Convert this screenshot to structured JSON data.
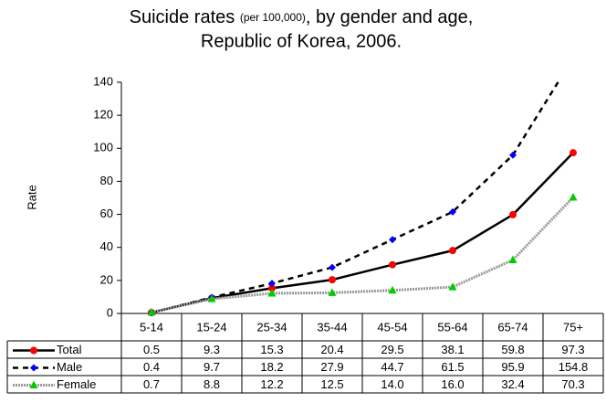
{
  "chart_data": {
    "type": "line",
    "title": {
      "main": "Suicide rates",
      "note": "(per 100,000)",
      "rest": ", by gender and age,",
      "line2": "Republic of Korea, 2006."
    },
    "y_label": "Rate",
    "categories": [
      "5-14",
      "15-24",
      "25-34",
      "35-44",
      "45-54",
      "55-64",
      "65-74",
      "75+"
    ],
    "ylim": [
      0,
      140
    ],
    "yticks": [
      0,
      20,
      40,
      60,
      80,
      100,
      120,
      140
    ],
    "series": [
      {
        "name": "Total",
        "color": "#000000",
        "marker": "circle",
        "marker_color": "#ff0000",
        "dash": "solid",
        "values": [
          0.5,
          9.3,
          15.3,
          20.4,
          29.5,
          38.1,
          59.8,
          97.3
        ],
        "value_labels": [
          "0.5",
          "9.3",
          "15.3",
          "20.4",
          "29.5",
          "38.1",
          "59.8",
          "97.3"
        ]
      },
      {
        "name": "Male",
        "color": "#000000",
        "marker": "diamond",
        "marker_color": "#0000ff",
        "dash": "dashed",
        "values": [
          0.4,
          9.7,
          18.2,
          27.9,
          44.7,
          61.5,
          95.9,
          154.8
        ],
        "value_labels": [
          "0.4",
          "9.7",
          "18.2",
          "27.9",
          "44.7",
          "61.5",
          "95.9",
          "154.8"
        ]
      },
      {
        "name": "Female",
        "color": "#999999",
        "marker": "triangle",
        "marker_color": "#00cc00",
        "dash": "dotted",
        "values": [
          0.7,
          8.8,
          12.2,
          12.5,
          14.0,
          16.0,
          32.4,
          70.3
        ],
        "value_labels": [
          "0.7",
          "8.8",
          "12.2",
          "12.5",
          "14.0",
          "16.0",
          "32.4",
          "70.3"
        ]
      }
    ]
  }
}
